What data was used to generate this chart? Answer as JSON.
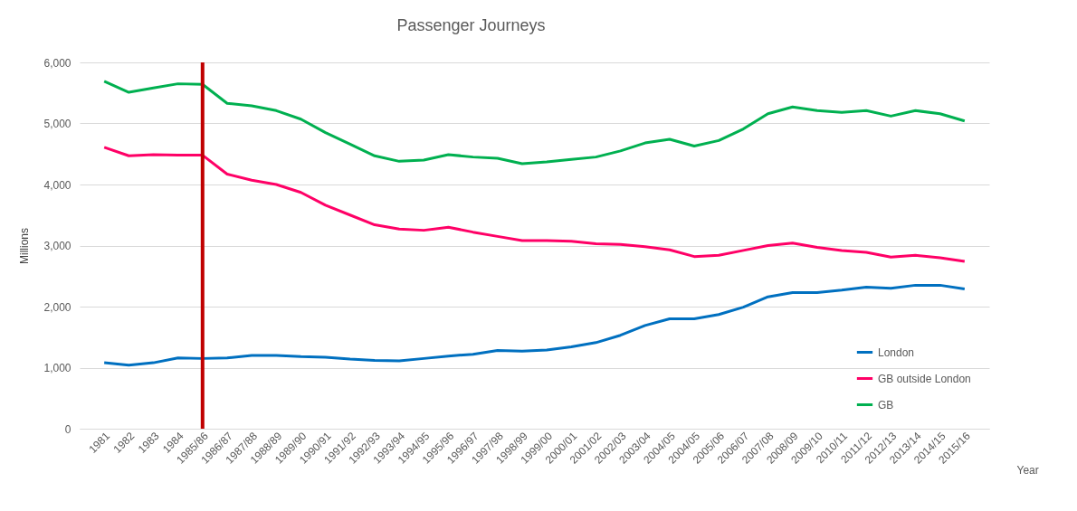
{
  "chart_data": {
    "type": "line",
    "title": "Passenger Journeys",
    "xlabel": "Year",
    "ylabel": "Millions",
    "categories": [
      "1981",
      "1982",
      "1983",
      "1984",
      "1985/86",
      "1986/87",
      "1987/88",
      "1988/89",
      "1989/90",
      "1990/91",
      "1991/92",
      "1992/93",
      "1993/94",
      "1994/95",
      "1995/96",
      "1996/97",
      "1997/98",
      "1998/99",
      "1999/00",
      "2000/01",
      "2001/02",
      "2002/03",
      "2003/04",
      "2004/05",
      "2004/05",
      "2005/06",
      "2006/07",
      "2007/08",
      "2008/09",
      "2009/10",
      "2010/11",
      "2011/12",
      "2012/13",
      "2013/14",
      "2014/15",
      "2015/16"
    ],
    "series": [
      {
        "name": "London",
        "color": "#0070c0",
        "values": [
          1080,
          1040,
          1080,
          1160,
          1150,
          1160,
          1200,
          1200,
          1180,
          1170,
          1140,
          1120,
          1110,
          1150,
          1190,
          1220,
          1280,
          1270,
          1290,
          1340,
          1410,
          1530,
          1690,
          1800,
          1800,
          1870,
          1990,
          2160,
          2230,
          2230,
          2270,
          2320,
          2300,
          2350,
          2350,
          2290
        ]
      },
      {
        "name": "GB outside London",
        "color": "#ff0066",
        "values": [
          4610,
          4470,
          4490,
          4480,
          4480,
          4170,
          4070,
          4000,
          3870,
          3660,
          3500,
          3340,
          3270,
          3250,
          3300,
          3220,
          3150,
          3080,
          3080,
          3070,
          3030,
          3020,
          2980,
          2930,
          2820,
          2840,
          2920,
          3000,
          3040,
          2970,
          2920,
          2890,
          2810,
          2840,
          2800,
          2740
        ]
      },
      {
        "name": "GB",
        "color": "#00b050",
        "values": [
          5690,
          5510,
          5580,
          5650,
          5640,
          5330,
          5290,
          5210,
          5070,
          4850,
          4660,
          4470,
          4380,
          4400,
          4490,
          4450,
          4430,
          4340,
          4370,
          4410,
          4450,
          4550,
          4680,
          4740,
          4630,
          4720,
          4910,
          5160,
          5270,
          5210,
          5180,
          5210,
          5120,
          5210,
          5160,
          5040
        ]
      }
    ],
    "ylim": [
      0,
      6000
    ],
    "yticks": [
      0,
      {
        "value": 1000,
        "label": "1,000"
      },
      {
        "value": 2000,
        "label": "2,000"
      },
      {
        "value": 3000,
        "label": "3,000"
      },
      {
        "value": 4000,
        "label": "4,000"
      },
      {
        "value": 5000,
        "label": "5,000"
      },
      {
        "value": 6000,
        "label": "6,000"
      }
    ],
    "grid": "y",
    "legend": "bottom right",
    "line_style": "solid",
    "marker": "none",
    "ref_lines": [
      {
        "axis": "x",
        "value": "1985/86",
        "color": "#c00000"
      }
    ]
  }
}
